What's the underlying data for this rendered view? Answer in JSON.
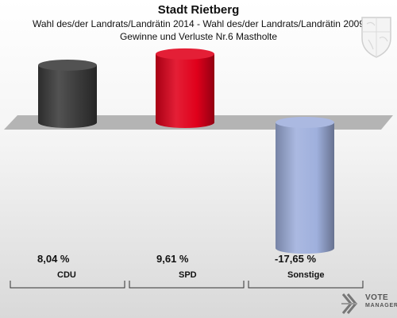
{
  "header": {
    "title": "Stadt Rietberg",
    "subtitle_line1": "Wahl des/der Landrats/Landrätin 2014 - Wahl des/der Landrats/Landrätin 2009",
    "subtitle_line2": "Gewinne und Verluste Nr.6 Mastholte"
  },
  "chart_data": {
    "type": "bar",
    "title": "Stadt Rietberg",
    "subtitle": "Wahl des/der Landrats/Landrätin 2014 - Wahl des/der Landrats/Landrätin 2009 — Gewinne und Verluste Nr.6 Mastholte",
    "categories": [
      "CDU",
      "SPD",
      "Sonstige"
    ],
    "values": [
      8.04,
      9.61,
      -17.65
    ],
    "value_labels": [
      "8,04 %",
      "9,61 %",
      "-17,65 %"
    ],
    "colors": [
      "#3a3a3a",
      "#e0001b",
      "#9fb0dd"
    ],
    "ylim": [
      -20,
      12
    ],
    "xlabel": "",
    "ylabel": "",
    "grid": false,
    "legend": "none"
  },
  "logo": {
    "line1": "VOTE",
    "line2": "MANAGER"
  }
}
